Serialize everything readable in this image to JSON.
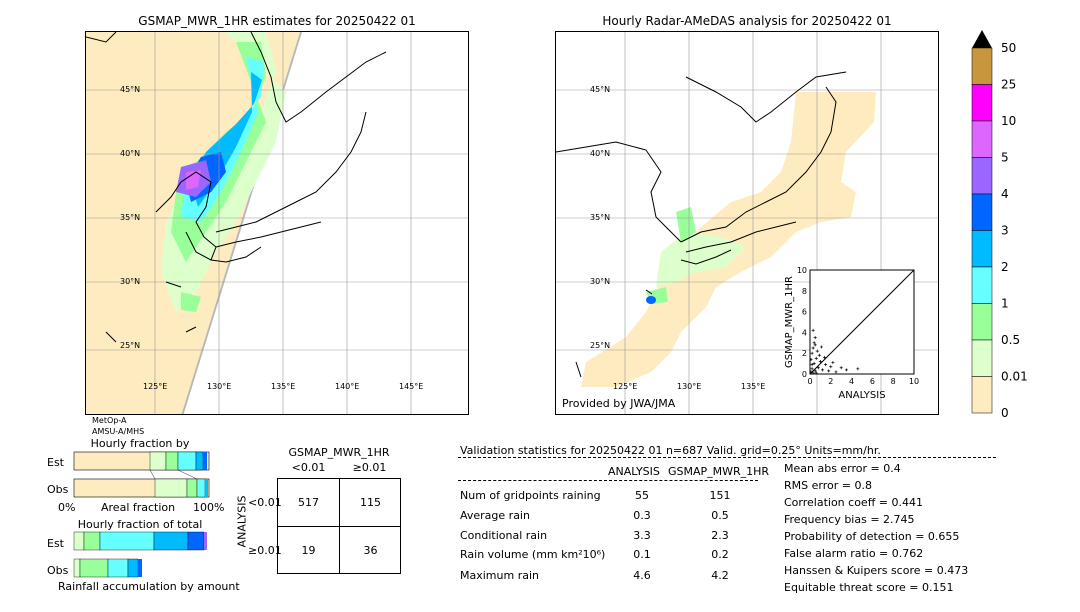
{
  "left_map": {
    "title": "GSMAP_MWR_1HR estimates for 20250422 01",
    "lat_labels": [
      "45°N",
      "40°N",
      "35°N",
      "30°N",
      "25°N"
    ],
    "lon_labels": [
      "125°E",
      "130°E",
      "135°E",
      "140°E",
      "145°E"
    ],
    "sensors": [
      "MetOp-A",
      "AMSU-A/MHS"
    ]
  },
  "right_map": {
    "title": "Hourly Radar-AMeDAS analysis for 20250422 01",
    "lat_labels": [
      "45°N",
      "40°N",
      "35°N",
      "30°N",
      "25°N"
    ],
    "lon_labels": [
      "125°E",
      "130°E",
      "135°E"
    ],
    "provider": "Provided by JWA/JMA"
  },
  "colorbar": {
    "labels": [
      "50",
      "25",
      "10",
      "5",
      "4",
      "3",
      "2",
      "1",
      "0.5",
      "0.01",
      "0"
    ],
    "colors": [
      "#c8963c",
      "#ff00ff",
      "#dd66ff",
      "#9966ff",
      "#0066ff",
      "#00bbff",
      "#66ffff",
      "#99ff99",
      "#ddffcc",
      "#ffebc0"
    ],
    "extend_color": "#000000"
  },
  "scatter": {
    "xlabel": "ANALYSIS",
    "ylabel": "GSMAP_MWR_1HR",
    "ticks": [
      "0",
      "2",
      "4",
      "6",
      "8",
      "10"
    ]
  },
  "occurrence": {
    "title": "Hourly fraction by occurence",
    "rows": [
      "Est",
      "Obs"
    ],
    "axis_left": "0%",
    "axis_mid": "Areal fraction",
    "axis_right": "100%"
  },
  "total_rain": {
    "title": "Hourly fraction of total rain",
    "rows": [
      "Est",
      "Obs"
    ],
    "footer": "Rainfall accumulation by amount"
  },
  "contingency": {
    "title": "GSMAP_MWR_1HR",
    "col_lt": "<0.01",
    "col_ge": "≥0.01",
    "side": "ANALYSIS",
    "row_lt": "<0.01",
    "row_ge": "≥0.01",
    "a": "517",
    "b": "115",
    "c": "19",
    "d": "36"
  },
  "validation": {
    "header": "Validation statistics for 20250422 01  n=687 Valid. grid=0.25° Units=mm/hr.",
    "col_analysis": "ANALYSIS",
    "col_gsmap": "GSMAP_MWR_1HR",
    "rows": [
      {
        "label": "Num of gridpoints raining",
        "analysis": "55",
        "gsmap": "151"
      },
      {
        "label": "Average rain",
        "analysis": "0.3",
        "gsmap": "0.5"
      },
      {
        "label": "Conditional rain",
        "analysis": "3.3",
        "gsmap": "2.3"
      },
      {
        "label": "Rain volume (mm km²10⁶)",
        "analysis": "0.1",
        "gsmap": "0.2"
      },
      {
        "label": "Maximum rain",
        "analysis": "4.6",
        "gsmap": "4.2"
      }
    ],
    "scores": [
      "Mean abs error =    0.4",
      "RMS error =    0.8",
      "Correlation coeff =  0.441",
      "Frequency bias =  2.745",
      "Probability of detection =  0.655",
      "False alarm ratio =  0.762",
      "Hanssen & Kuipers score =  0.473",
      "Equitable threat score =  0.151"
    ]
  },
  "chart_data": {
    "type": "scatter",
    "xlabel": "ANALYSIS",
    "ylabel": "GSMAP_MWR_1HR",
    "xlim": [
      0,
      10
    ],
    "ylim": [
      0,
      10
    ],
    "points": [
      [
        0.1,
        0.2
      ],
      [
        0.2,
        0.5
      ],
      [
        0.3,
        0.1
      ],
      [
        0.4,
        1.0
      ],
      [
        0.5,
        0.3
      ],
      [
        0.6,
        1.5
      ],
      [
        0.2,
        2.0
      ],
      [
        0.3,
        2.5
      ],
      [
        0.5,
        3.5
      ],
      [
        0.8,
        0.6
      ],
      [
        1.0,
        1.2
      ],
      [
        1.2,
        0.4
      ],
      [
        0.7,
        2.2
      ],
      [
        0.4,
        3.0
      ],
      [
        1.5,
        0.9
      ],
      [
        1.8,
        0.3
      ],
      [
        2.0,
        0.7
      ],
      [
        2.5,
        0.2
      ],
      [
        3.0,
        0.6
      ],
      [
        3.5,
        0.4
      ],
      [
        0.2,
        0.9
      ],
      [
        0.6,
        0.1
      ],
      [
        0.9,
        1.8
      ],
      [
        1.1,
        2.6
      ],
      [
        0.3,
        4.2
      ],
      [
        4.6,
        0.5
      ],
      [
        0.1,
        1.4
      ],
      [
        0.5,
        2.8
      ],
      [
        1.4,
        1.6
      ],
      [
        2.2,
        1.1
      ]
    ]
  }
}
